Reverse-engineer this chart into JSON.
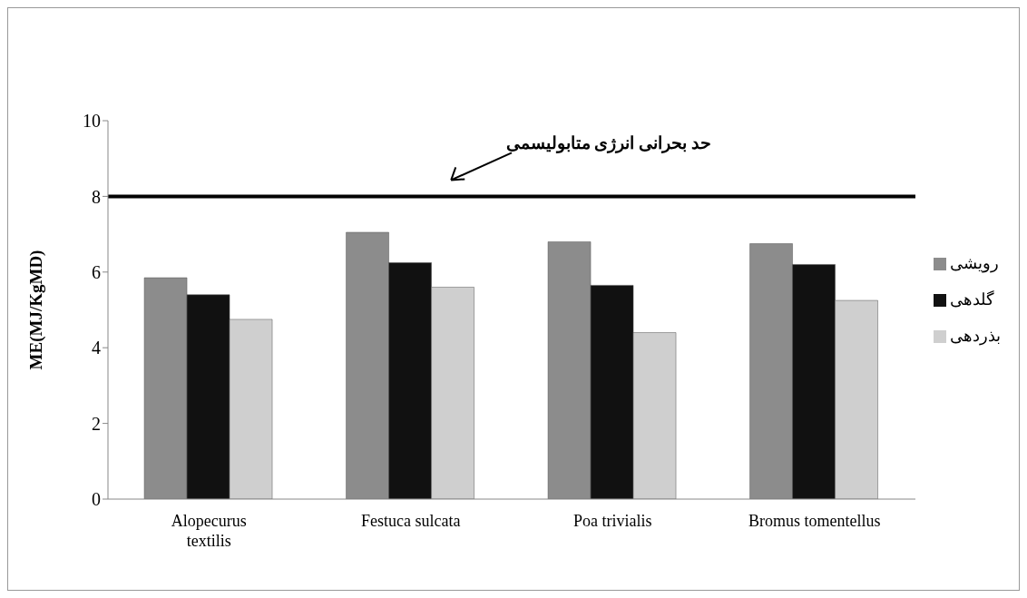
{
  "chart_data": {
    "type": "bar",
    "ylabel": "ME(MJ/KgMD)",
    "categories": [
      "Alopecurus textilis",
      "Festuca sulcata",
      "Poa trivialis",
      "Bromus tomentellus"
    ],
    "series": [
      {
        "name": "رویشی",
        "color": "#8c8c8c",
        "values": [
          5.85,
          7.05,
          6.8,
          6.75
        ]
      },
      {
        "name": "گلدهی",
        "color": "#111111",
        "values": [
          5.4,
          6.25,
          5.65,
          6.2
        ]
      },
      {
        "name": "بذردهی",
        "color": "#cfcfcf",
        "values": [
          4.75,
          5.6,
          4.4,
          5.25
        ]
      }
    ],
    "ylim": [
      0,
      10
    ],
    "yticks": [
      0,
      2,
      4,
      6,
      8,
      10
    ],
    "grid": false,
    "legend": "right",
    "ref_lines": [
      {
        "axis": "y",
        "value": 8,
        "label": "حد بحرانی انرژی متابولیسمی",
        "color": "#000000"
      }
    ]
  }
}
